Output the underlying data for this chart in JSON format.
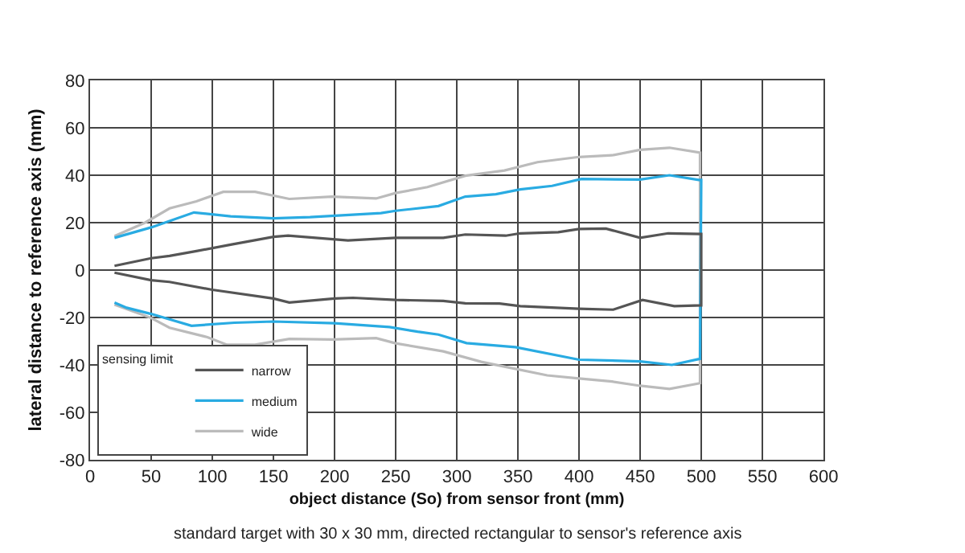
{
  "chart_data": {
    "type": "line",
    "xlabel": "object distance (So) from sensor front (mm)",
    "ylabel": "lateral distance to reference axis (mm)",
    "legend_title": "sensing limit",
    "legend": "bottom left",
    "grid": true,
    "line_style": "solid",
    "marker": "none",
    "xlim": [
      0,
      600
    ],
    "xticks": [
      0,
      50,
      100,
      150,
      200,
      250,
      300,
      350,
      400,
      450,
      500,
      550,
      600
    ],
    "ylim": [
      -80,
      80
    ],
    "yticks": [
      -80,
      -60,
      -40,
      -20,
      0,
      20,
      40,
      60,
      80
    ],
    "annotations": [
      "standard target with 30 x 30 mm, directed rectangular to sensor's reference axis"
    ],
    "series": [
      {
        "name": "narrow",
        "color": "#555555",
        "x": [
          20,
          50,
          65,
          87,
          115,
          150,
          162,
          211,
          250,
          289,
          307,
          340,
          352,
          383,
          400,
          422,
          450,
          473,
          500,
          500,
          478,
          452,
          428,
          400,
          352,
          335,
          307,
          289,
          250,
          215,
          200,
          163,
          150,
          100,
          65,
          50,
          20
        ],
        "values": [
          1.8,
          5,
          6,
          8,
          10.7,
          14,
          14.5,
          12.5,
          13.6,
          13.6,
          15,
          14.5,
          15.5,
          16,
          17.3,
          17.5,
          13.6,
          15.5,
          15.2,
          -14.9,
          -15.2,
          -12.6,
          -16.7,
          -16.3,
          -15.2,
          -14.1,
          -14,
          -13,
          -12.6,
          -11.7,
          -12,
          -13.7,
          -12,
          -8.3,
          -5,
          -4.3,
          -1.1
        ]
      },
      {
        "name": "medium",
        "color": "#29abe2",
        "x": [
          20,
          50,
          85,
          115,
          150,
          180,
          238,
          250,
          285,
          307,
          332,
          352,
          378,
          402,
          450,
          474,
          498,
          500,
          499,
          476,
          450,
          400,
          348,
          308,
          285,
          268,
          245,
          200,
          150,
          118,
          83,
          50,
          30,
          20
        ],
        "values": [
          13.6,
          18,
          24.3,
          22.7,
          21.8,
          22.3,
          24,
          25,
          27,
          31,
          32,
          34,
          35.5,
          38.4,
          38.2,
          40,
          38,
          38,
          -37.4,
          -40,
          -38.5,
          -37.8,
          -32.5,
          -30.8,
          -27.2,
          -26,
          -24,
          -22.4,
          -21.7,
          -22.2,
          -23.5,
          -18.5,
          -15.9,
          -13.7
        ]
      },
      {
        "name": "wide",
        "color": "#bbbbbb",
        "x": [
          20,
          45,
          65,
          87,
          109,
          135,
          163,
          198,
          234,
          250,
          276,
          307,
          339,
          366,
          400,
          427,
          450,
          474,
          499,
          499,
          474,
          450,
          427,
          400,
          374,
          339,
          320,
          289,
          250,
          234,
          198,
          163,
          135,
          112,
          96,
          65,
          50,
          20
        ],
        "values": [
          14.3,
          20,
          26,
          29,
          33,
          33,
          30,
          31,
          30.2,
          32.5,
          35,
          39.8,
          42,
          45.5,
          47.7,
          48.4,
          50.7,
          51.6,
          49.5,
          -47.7,
          -50.1,
          -48.8,
          -47,
          -45.7,
          -44.4,
          -40.7,
          -38.7,
          -34.3,
          -30.9,
          -28.7,
          -29.3,
          -29,
          -31.5,
          -31.5,
          -28.3,
          -24.3,
          -20.2,
          -14.6
        ]
      }
    ]
  }
}
